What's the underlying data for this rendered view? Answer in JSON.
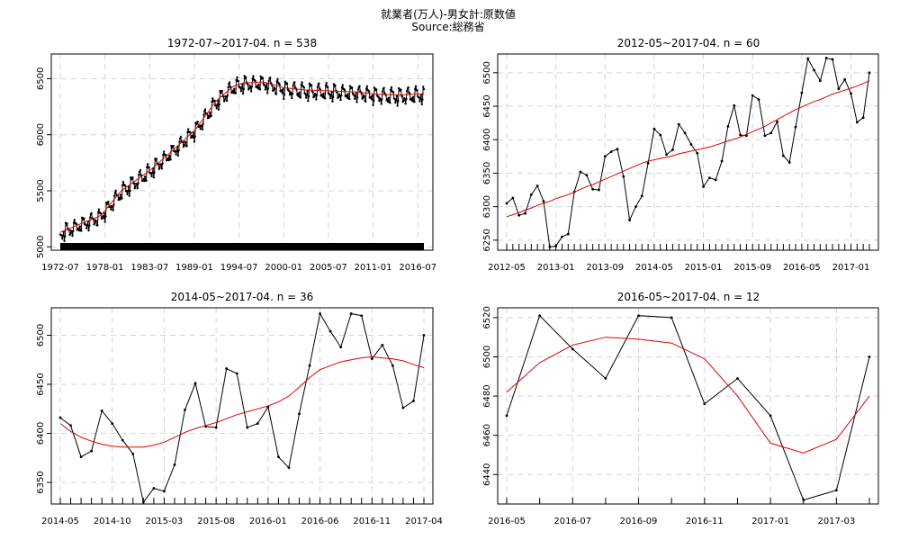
{
  "title": "就業者(万人)-男女計:原数値",
  "subtitle": "Source:総務省",
  "chart_data": [
    {
      "type": "line",
      "title": "1972-07~2017-04. n = 538",
      "xlabel": "",
      "ylabel": "",
      "grid": true,
      "x_start": "1972-07",
      "xlim": [
        0,
        537
      ],
      "ylim": [
        4970,
        6720
      ],
      "y_ticks": [
        5000,
        5500,
        6000,
        6500
      ],
      "x_ticks": [
        {
          "i": 0,
          "label": "1972-07"
        },
        {
          "i": 66,
          "label": "1978-01"
        },
        {
          "i": 132,
          "label": "1983-07"
        },
        {
          "i": 198,
          "label": "1989-01"
        },
        {
          "i": 264,
          "label": "1994-07"
        },
        {
          "i": 330,
          "label": "2000-01"
        },
        {
          "i": 396,
          "label": "2005-07"
        },
        {
          "i": 462,
          "label": "2011-01"
        },
        {
          "i": 528,
          "label": "2016-07"
        }
      ],
      "level_points": [
        [
          0,
          5130
        ],
        [
          60,
          5280
        ],
        [
          90,
          5500
        ],
        [
          132,
          5680
        ],
        [
          170,
          5880
        ],
        [
          200,
          6050
        ],
        [
          230,
          6300
        ],
        [
          255,
          6430
        ],
        [
          270,
          6460
        ],
        [
          300,
          6470
        ],
        [
          330,
          6420
        ],
        [
          360,
          6400
        ],
        [
          400,
          6390
        ],
        [
          440,
          6380
        ],
        [
          470,
          6360
        ],
        [
          500,
          6355
        ],
        [
          537,
          6365
        ]
      ],
      "seasonal_amplitude": 90,
      "dense_rug": true,
      "points": true
    },
    {
      "type": "line",
      "title": "2012-05~2017-04. n = 60",
      "xlabel": "",
      "ylabel": "",
      "grid": true,
      "ylim": [
        6235,
        6528
      ],
      "y_ticks": [
        6250,
        6300,
        6350,
        6400,
        6450,
        6500
      ],
      "x_ticks": [
        {
          "i": 0,
          "label": "2012-05"
        },
        {
          "i": 8,
          "label": "2013-01"
        },
        {
          "i": 16,
          "label": "2013-09"
        },
        {
          "i": 24,
          "label": "2014-05"
        },
        {
          "i": 32,
          "label": "2015-01"
        },
        {
          "i": 40,
          "label": "2015-09"
        },
        {
          "i": 48,
          "label": "2016-05"
        },
        {
          "i": 56,
          "label": "2017-01"
        }
      ],
      "values": [
        6305,
        6313,
        6287,
        6290,
        6318,
        6331,
        6308,
        6240,
        6241,
        6255,
        6259,
        6322,
        6352,
        6347,
        6326,
        6325,
        6375,
        6382,
        6386,
        6345,
        6280,
        6300,
        6316,
        6365,
        6416,
        6407,
        6378,
        6385,
        6423,
        6410,
        6393,
        6380,
        6330,
        6343,
        6340,
        6368,
        6420,
        6451,
        6407,
        6406,
        6466,
        6460,
        6406,
        6410,
        6427,
        6376,
        6366,
        6419,
        6470,
        6521,
        6504,
        6488,
        6522,
        6520,
        6476,
        6490,
        6469,
        6426,
        6433,
        6500
      ],
      "trend": [
        6285,
        6288,
        6291,
        6295,
        6298,
        6302,
        6305,
        6308,
        6312,
        6315,
        6318,
        6322,
        6326,
        6330,
        6333,
        6337,
        6341,
        6345,
        6349,
        6353,
        6357,
        6361,
        6365,
        6368,
        6370,
        6372,
        6374,
        6376,
        6379,
        6381,
        6383,
        6385,
        6387,
        6389,
        6392,
        6395,
        6398,
        6401,
        6404,
        6408,
        6412,
        6416,
        6420,
        6425,
        6430,
        6435,
        6440,
        6445,
        6449,
        6453,
        6457,
        6460,
        6464,
        6468,
        6471,
        6474,
        6477,
        6480,
        6484,
        6488
      ]
    },
    {
      "type": "line",
      "title": "2014-05~2017-04. n = 36",
      "xlabel": "",
      "ylabel": "",
      "grid": true,
      "ylim": [
        6328,
        6528
      ],
      "y_ticks": [
        6350,
        6400,
        6450,
        6500
      ],
      "x_ticks": [
        {
          "i": 0,
          "label": "2014-05"
        },
        {
          "i": 5,
          "label": "2014-10"
        },
        {
          "i": 10,
          "label": "2015-03"
        },
        {
          "i": 15,
          "label": "2015-08"
        },
        {
          "i": 20,
          "label": "2016-01"
        },
        {
          "i": 25,
          "label": "2016-06"
        },
        {
          "i": 30,
          "label": "2016-11"
        },
        {
          "i": 35,
          "label": "2017-04"
        }
      ],
      "values": [
        6416,
        6408,
        6376,
        6382,
        6423,
        6410,
        6393,
        6379,
        6330,
        6344,
        6341,
        6368,
        6424,
        6451,
        6407,
        6406,
        6466,
        6461,
        6406,
        6410,
        6427,
        6376,
        6365,
        6420,
        6469,
        6522,
        6504,
        6488,
        6522,
        6520,
        6476,
        6490,
        6469,
        6426,
        6433,
        6500
      ],
      "trend": [
        6410,
        6402,
        6396,
        6392,
        6389,
        6387,
        6386,
        6386,
        6386,
        6388,
        6391,
        6396,
        6401,
        6405,
        6408,
        6411,
        6415,
        6419,
        6422,
        6425,
        6428,
        6432,
        6438,
        6447,
        6457,
        6465,
        6469,
        6473,
        6475,
        6477,
        6478,
        6477,
        6476,
        6474,
        6470,
        6467
      ]
    },
    {
      "type": "line",
      "title": "2016-05~2017-04. n = 12",
      "xlabel": "",
      "ylabel": "",
      "grid": true,
      "ylim": [
        6425,
        6525
      ],
      "y_ticks": [
        6440,
        6460,
        6480,
        6500,
        6520
      ],
      "x_ticks": [
        {
          "i": 0,
          "label": "2016-05"
        },
        {
          "i": 2,
          "label": "2016-07"
        },
        {
          "i": 4,
          "label": "2016-09"
        },
        {
          "i": 6,
          "label": "2016-11"
        },
        {
          "i": 8,
          "label": "2017-01"
        },
        {
          "i": 10,
          "label": "2017-03"
        }
      ],
      "values": [
        6470,
        6521,
        6504,
        6489,
        6521,
        6520,
        6476,
        6489,
        6470,
        6427,
        6432,
        6500
      ],
      "trend": [
        6482,
        6497,
        6506,
        6510,
        6509,
        6507,
        6499,
        6480,
        6456,
        6451,
        6458,
        6480
      ]
    }
  ]
}
